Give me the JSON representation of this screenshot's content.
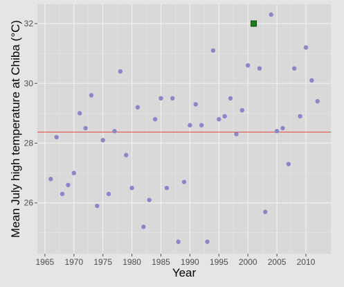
{
  "chart_data": {
    "type": "scatter",
    "xlabel": "Year",
    "ylabel": "Mean July high temperature at Chiba (°C)",
    "xlim": [
      1963.7,
      2014.3
    ],
    "ylim": [
      24.3,
      32.65
    ],
    "x_ticks": [
      1965,
      1970,
      1975,
      1980,
      1985,
      1990,
      1995,
      2000,
      2005,
      2010
    ],
    "y_ticks": [
      26,
      28,
      30,
      32
    ],
    "grid": true,
    "reference_line": {
      "y": 28.37,
      "color": "#e8473d"
    },
    "points": [
      {
        "x": 1966,
        "y": 26.8
      },
      {
        "x": 1967,
        "y": 28.2
      },
      {
        "x": 1968,
        "y": 26.3
      },
      {
        "x": 1969,
        "y": 26.6
      },
      {
        "x": 1970,
        "y": 27.0
      },
      {
        "x": 1971,
        "y": 29.0
      },
      {
        "x": 1972,
        "y": 28.5
      },
      {
        "x": 1973,
        "y": 29.6
      },
      {
        "x": 1974,
        "y": 25.9
      },
      {
        "x": 1975,
        "y": 28.1
      },
      {
        "x": 1976,
        "y": 26.3
      },
      {
        "x": 1977,
        "y": 28.4
      },
      {
        "x": 1978,
        "y": 30.4
      },
      {
        "x": 1979,
        "y": 27.6
      },
      {
        "x": 1980,
        "y": 26.5
      },
      {
        "x": 1981,
        "y": 29.2
      },
      {
        "x": 1982,
        "y": 25.2
      },
      {
        "x": 1983,
        "y": 26.1
      },
      {
        "x": 1984,
        "y": 28.8
      },
      {
        "x": 1985,
        "y": 29.5
      },
      {
        "x": 1986,
        "y": 26.5
      },
      {
        "x": 1987,
        "y": 29.5
      },
      {
        "x": 1988,
        "y": 24.7
      },
      {
        "x": 1989,
        "y": 26.7
      },
      {
        "x": 1990,
        "y": 28.6
      },
      {
        "x": 1991,
        "y": 29.3
      },
      {
        "x": 1992,
        "y": 28.6
      },
      {
        "x": 1993,
        "y": 24.7
      },
      {
        "x": 1994,
        "y": 31.1
      },
      {
        "x": 1995,
        "y": 28.8
      },
      {
        "x": 1996,
        "y": 28.9
      },
      {
        "x": 1997,
        "y": 29.5
      },
      {
        "x": 1998,
        "y": 28.3
      },
      {
        "x": 1999,
        "y": 29.1
      },
      {
        "x": 2000,
        "y": 30.6
      },
      {
        "x": 2002,
        "y": 30.5
      },
      {
        "x": 2003,
        "y": 25.7
      },
      {
        "x": 2004,
        "y": 32.3
      },
      {
        "x": 2005,
        "y": 28.4
      },
      {
        "x": 2006,
        "y": 28.5
      },
      {
        "x": 2007,
        "y": 27.3
      },
      {
        "x": 2008,
        "y": 30.5
      },
      {
        "x": 2009,
        "y": 28.9
      },
      {
        "x": 2010,
        "y": 31.2
      },
      {
        "x": 2011,
        "y": 30.1
      },
      {
        "x": 2012,
        "y": 29.4
      }
    ],
    "highlight_point": {
      "x": 2001,
      "y": 32.0
    },
    "colors": {
      "point": "#8a87c9",
      "highlight_fill": "#1f7a1f",
      "highlight_stroke": "#0f4d0f",
      "panel": "#d9d9d9",
      "grid_major": "#f2f2f2",
      "grid_minor": "#e6e6e6",
      "page_background": "#e5e5e5"
    }
  }
}
